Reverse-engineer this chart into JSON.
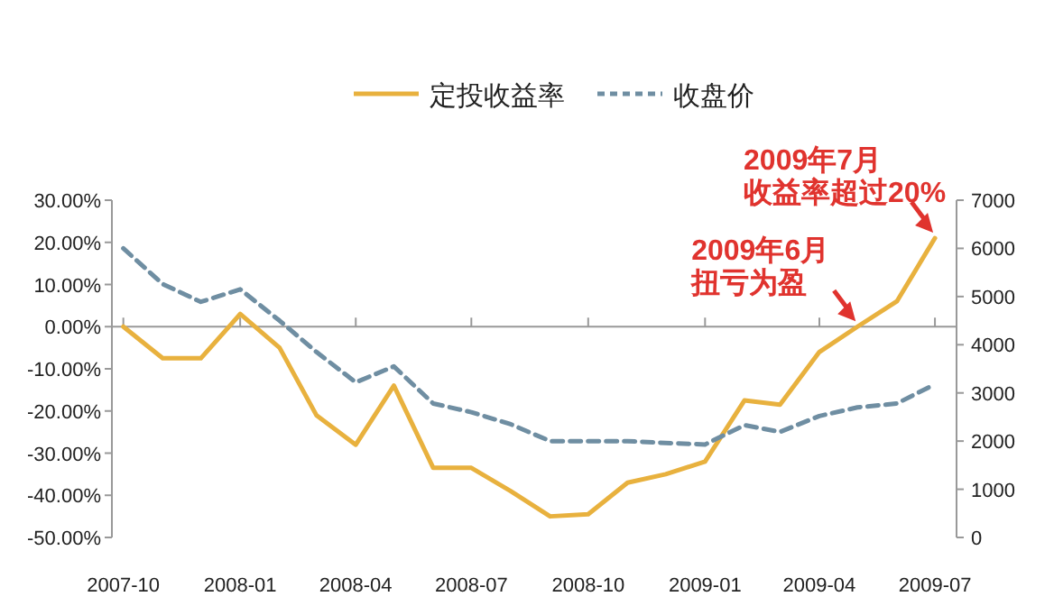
{
  "chart_data": {
    "type": "line",
    "x": [
      "2007-10",
      "2007-11",
      "2007-12",
      "2008-01",
      "2008-02",
      "2008-03",
      "2008-04",
      "2008-05",
      "2008-06",
      "2008-07",
      "2008-08",
      "2008-09",
      "2008-10",
      "2008-11",
      "2008-12",
      "2009-01",
      "2009-02",
      "2009-03",
      "2009-04",
      "2009-05",
      "2009-06",
      "2009-07"
    ],
    "series": [
      {
        "name": "定投收益率",
        "color": "#e8b13e",
        "line_style": "solid",
        "values": [
          0,
          -7.5,
          -7.5,
          3,
          -5,
          -21,
          -28,
          -14,
          -33.5,
          -33.5,
          -39,
          -45,
          -44.5,
          -37,
          -35,
          -32,
          -17.5,
          -18.5,
          -6,
          0,
          6,
          21
        ]
      },
      {
        "name": "收盘价",
        "color": "#6f8ea2",
        "line_style": "dashed",
        "axis": "y2",
        "values": [
          6000,
          5260,
          4890,
          5150,
          4500,
          3850,
          3220,
          3550,
          2780,
          2600,
          2350,
          2000,
          2000,
          2000,
          1960,
          1930,
          2330,
          2190,
          2520,
          2700,
          2780,
          3180
        ]
      }
    ],
    "xlim": [
      "2007-09-22",
      "2009-07-18"
    ],
    "xticks": [
      "2007-10",
      "2008-01",
      "2008-04",
      "2008-07",
      "2008-10",
      "2009-01",
      "2009-04",
      "2009-07"
    ],
    "ylim": [
      -50,
      30
    ],
    "yticks": [
      {
        "value": 30,
        "label": "30.00%"
      },
      {
        "value": 20,
        "label": "20.00%"
      },
      {
        "value": 10,
        "label": "10.00%"
      },
      {
        "value": 0,
        "label": "0.00%"
      },
      {
        "value": -10,
        "label": "-10.00%"
      },
      {
        "value": -20,
        "label": "-20.00%"
      },
      {
        "value": -30,
        "label": "-30.00%"
      },
      {
        "value": -40,
        "label": "-40.00%"
      },
      {
        "value": -50,
        "label": "-50.00%"
      }
    ],
    "y2lim": [
      0,
      7000
    ],
    "y2ticks": [
      0,
      1000,
      2000,
      3000,
      4000,
      5000,
      6000,
      7000
    ],
    "legend": "top",
    "annotations": [
      {
        "text": "2009年6月",
        "x": "2009-05",
        "y": 0
      },
      {
        "text": "扭亏为盈",
        "x": "2009-05",
        "y": 0
      },
      {
        "text": "2009年7月",
        "x": "2009-07",
        "y": 21
      },
      {
        "text": "收益率超过20%",
        "x": "2009-07",
        "y": 21
      }
    ]
  }
}
